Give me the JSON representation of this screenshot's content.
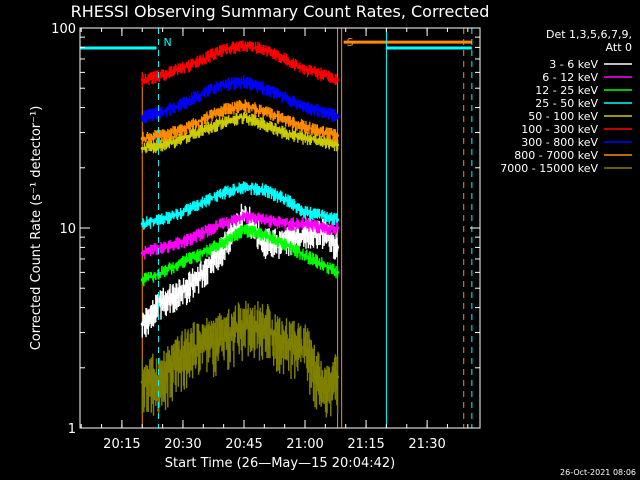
{
  "chart_data": {
    "type": "line",
    "title": "RHESSI Observing Summary Count Rates, Corrected",
    "ylabel": "Corrected Count Rate (s⁻¹ detector⁻¹)",
    "xlabel": "Start Time (26—May—15 20:04:42)",
    "timestamp": "26-Oct-2021 08:06",
    "y_scale": "log",
    "ylim": [
      1,
      100
    ],
    "xlim": [
      "20:04:42",
      "21:43:00"
    ],
    "x_ticks": [
      "20:15",
      "20:30",
      "20:45",
      "21:00",
      "21:15",
      "21:30"
    ],
    "y_ticks": [
      "1",
      "10",
      "100"
    ],
    "legend_header": [
      "Det 1,3,5,6,7,9,",
      "Att 0"
    ],
    "legend_placement": "right",
    "markers": [
      {
        "label": "N",
        "time": "20:24",
        "color": "#00ffff",
        "style": "dashed"
      },
      {
        "label": "S",
        "time": "21:09",
        "color": "#ff8c00",
        "style": "solid"
      }
    ],
    "observation_window": {
      "start": "20:20",
      "end": "21:08"
    },
    "series": [
      {
        "name": "3 - 6 keV",
        "color": "#ffffff",
        "times": [
          "20:20",
          "20:25",
          "20:30",
          "20:35",
          "20:40",
          "20:45",
          "20:50",
          "20:55",
          "21:00",
          "21:05",
          "21:08"
        ],
        "values": [
          3.3,
          4.3,
          4.8,
          6.0,
          8.0,
          12.0,
          8.5,
          8.5,
          9.5,
          9.5,
          8.0
        ]
      },
      {
        "name": "6 - 12 keV",
        "color": "#ff00ff",
        "times": [
          "20:20",
          "20:25",
          "20:30",
          "20:35",
          "20:40",
          "20:45",
          "20:50",
          "20:55",
          "21:00",
          "21:05",
          "21:08"
        ],
        "values": [
          7.5,
          8.0,
          8.5,
          9.5,
          10.5,
          11.5,
          11.0,
          10.5,
          10.5,
          10.0,
          10.0
        ]
      },
      {
        "name": "12 - 25 keV",
        "color": "#00ff00",
        "times": [
          "20:20",
          "20:25",
          "20:30",
          "20:35",
          "20:40",
          "20:45",
          "20:50",
          "20:55",
          "21:00",
          "21:05",
          "21:08"
        ],
        "values": [
          5.5,
          6.0,
          6.8,
          7.5,
          8.5,
          9.8,
          9.3,
          8.3,
          7.3,
          6.5,
          6.0
        ]
      },
      {
        "name": "25 - 50 keV",
        "color": "#00ffff",
        "times": [
          "20:20",
          "20:25",
          "20:30",
          "20:35",
          "20:40",
          "20:45",
          "20:50",
          "20:55",
          "21:00",
          "21:05",
          "21:08"
        ],
        "values": [
          10.5,
          11.0,
          12.0,
          13.5,
          15.0,
          16.0,
          15.5,
          14.0,
          12.0,
          11.5,
          11.0
        ]
      },
      {
        "name": "50 - 100 keV",
        "color": "#cccc00",
        "times": [
          "20:20",
          "20:25",
          "20:30",
          "20:35",
          "20:40",
          "20:45",
          "20:50",
          "20:55",
          "21:00",
          "21:05",
          "21:08"
        ],
        "values": [
          25,
          26,
          28,
          31,
          34,
          36,
          33,
          30,
          28,
          27,
          26
        ]
      },
      {
        "name": "100 - 300 keV",
        "color": "#ff0000",
        "times": [
          "20:20",
          "20:25",
          "20:30",
          "20:35",
          "20:40",
          "20:45",
          "20:50",
          "20:55",
          "21:00",
          "21:05",
          "21:08"
        ],
        "values": [
          55,
          58,
          63,
          70,
          78,
          82,
          78,
          70,
          62,
          58,
          55
        ]
      },
      {
        "name": "300 - 800 keV",
        "color": "#0000ff",
        "times": [
          "20:20",
          "20:25",
          "20:30",
          "20:35",
          "20:40",
          "20:45",
          "20:50",
          "20:55",
          "21:00",
          "21:05",
          "21:08"
        ],
        "values": [
          36,
          38,
          42,
          47,
          52,
          54,
          50,
          45,
          40,
          38,
          36
        ]
      },
      {
        "name": "800 - 7000 keV",
        "color": "#ff8c00",
        "times": [
          "20:20",
          "20:25",
          "20:30",
          "20:35",
          "20:40",
          "20:45",
          "20:50",
          "20:55",
          "21:00",
          "21:05",
          "21:08"
        ],
        "values": [
          28,
          29,
          31,
          35,
          39,
          41,
          38,
          35,
          32,
          30,
          29
        ]
      },
      {
        "name": "7000 - 15000 keV",
        "color": "#808000",
        "times": [
          "20:20",
          "20:25",
          "20:30",
          "20:35",
          "20:40",
          "20:45",
          "20:50",
          "20:55",
          "21:00",
          "21:05",
          "21:08"
        ],
        "values": [
          1.7,
          1.8,
          2.3,
          2.7,
          2.8,
          3.3,
          3.2,
          2.7,
          2.5,
          1.5,
          1.8
        ]
      }
    ]
  }
}
